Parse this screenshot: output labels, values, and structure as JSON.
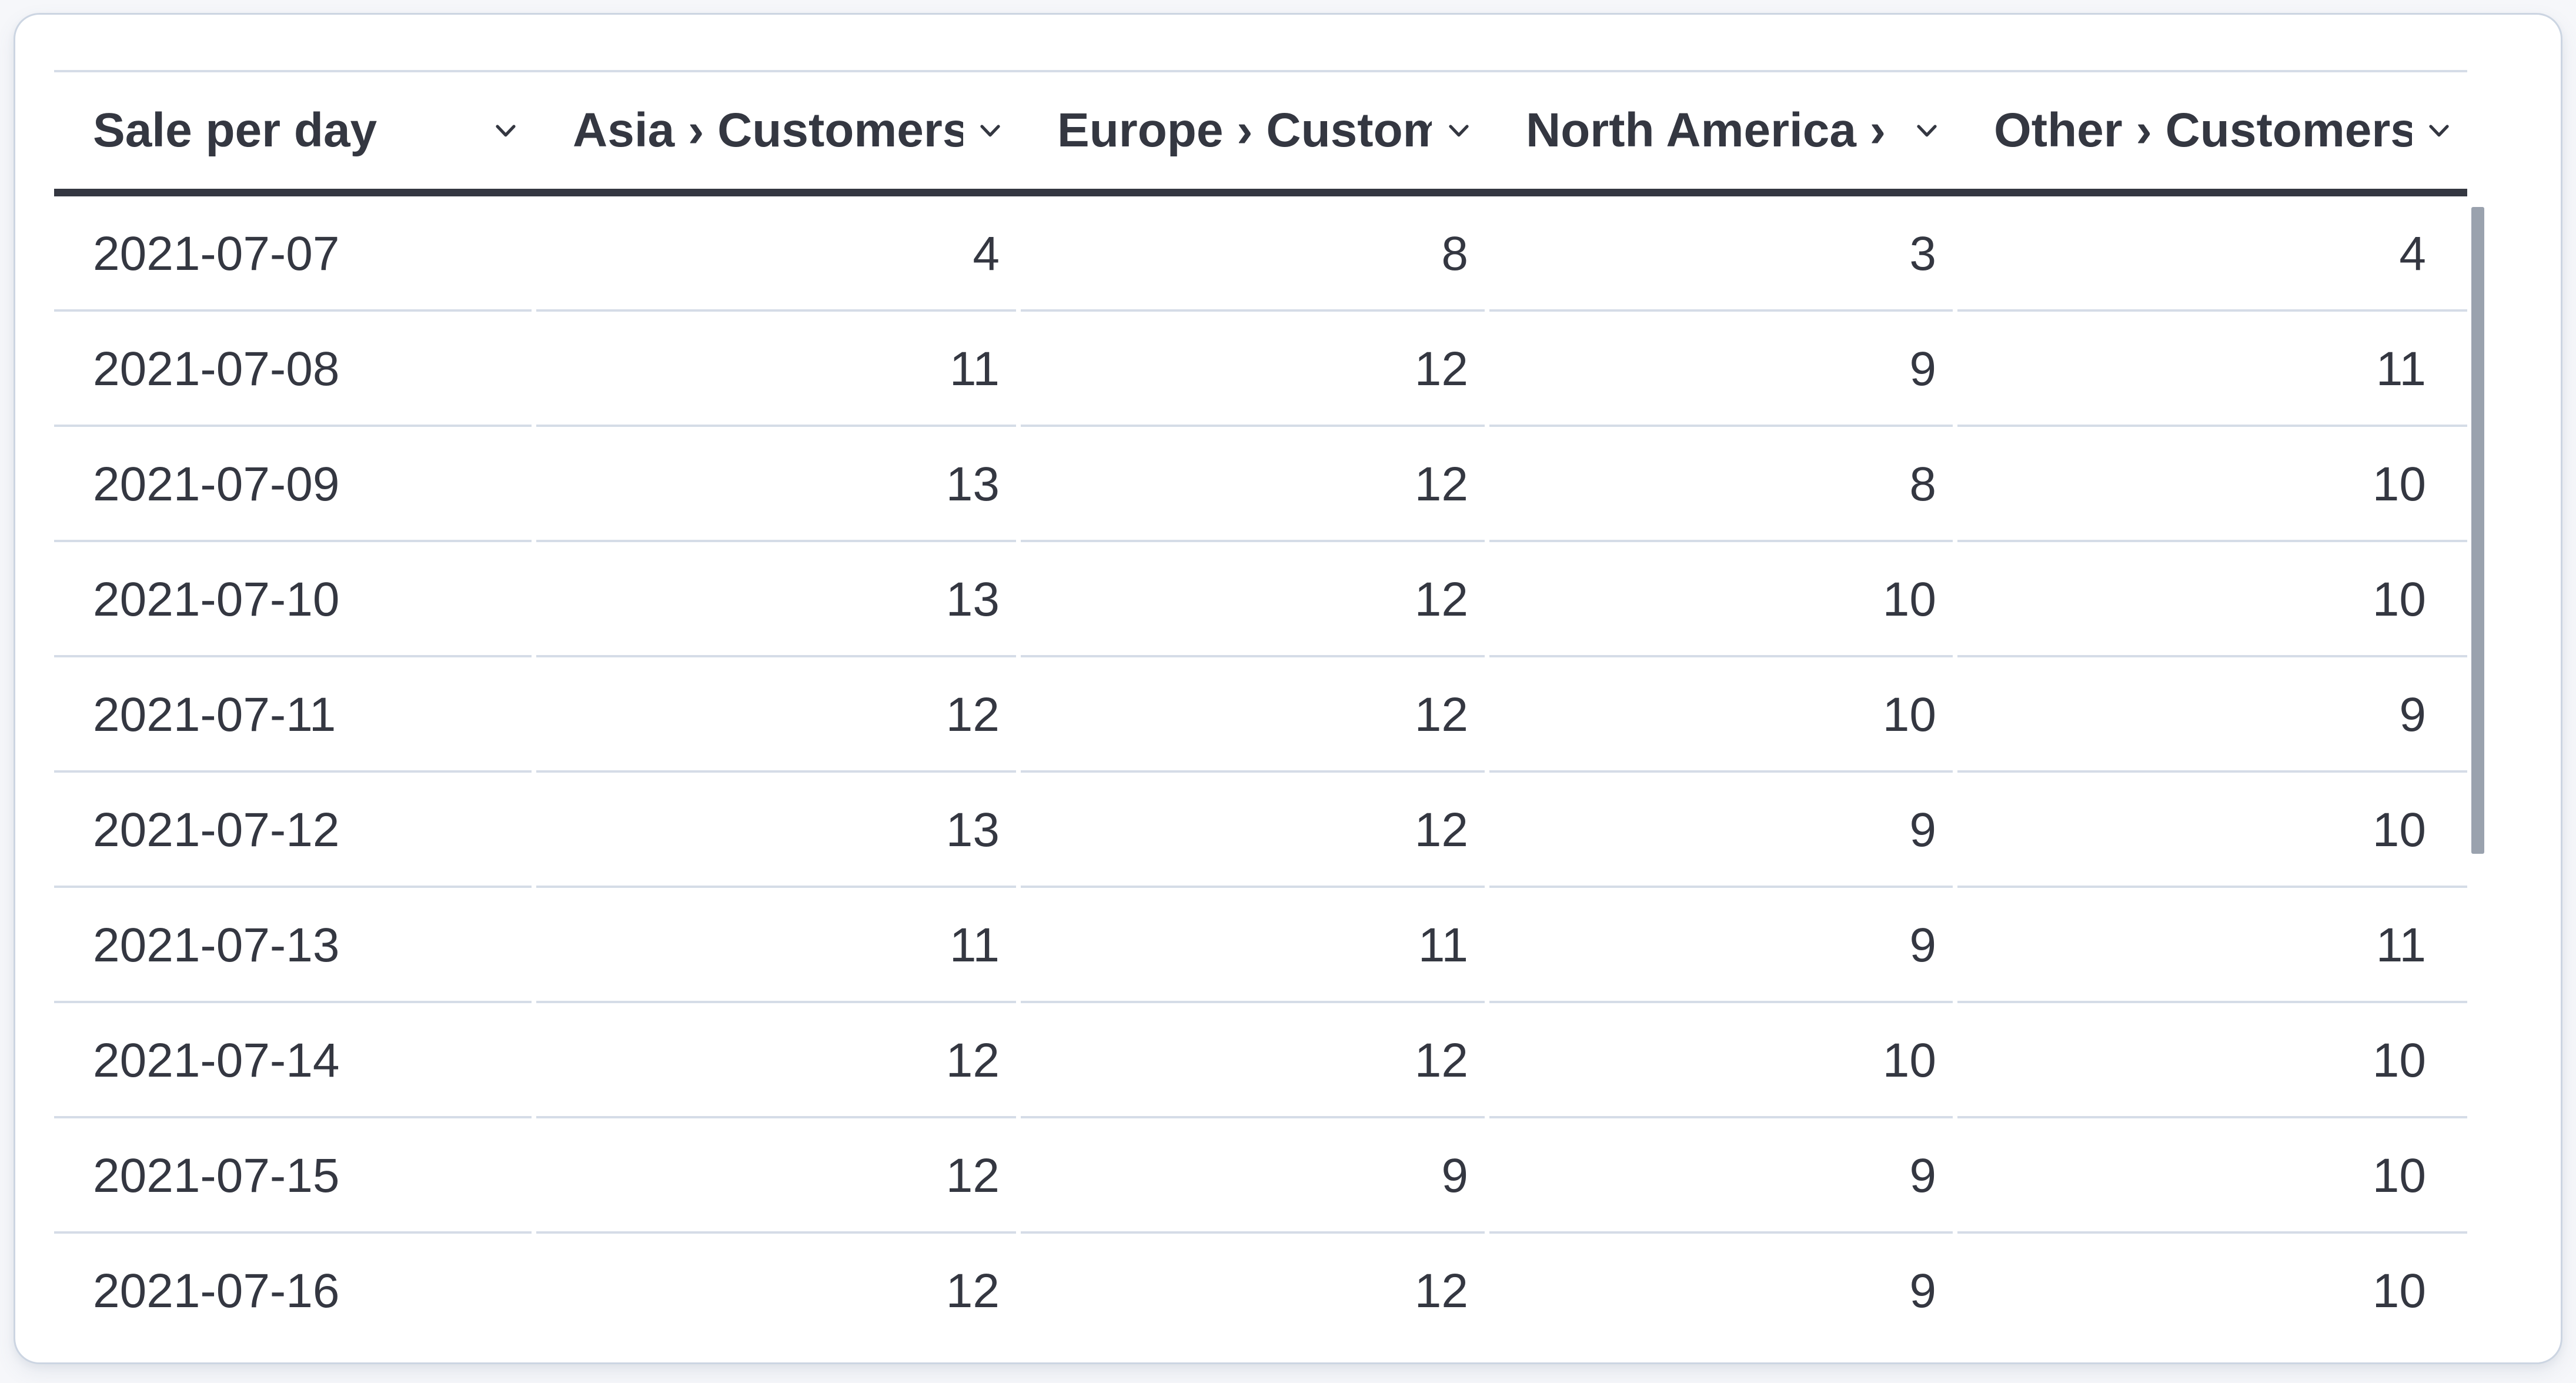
{
  "panel": {
    "type": "data-grid"
  },
  "table": {
    "columns": [
      {
        "label": "Sale per day"
      },
      {
        "label": "Asia › Customers"
      },
      {
        "label": "Europe › Customers"
      },
      {
        "label": "North America › Customers"
      },
      {
        "label": "Other › Customers"
      }
    ],
    "rows": [
      {
        "date": "2021-07-07",
        "values": [
          4,
          8,
          3,
          4
        ]
      },
      {
        "date": "2021-07-08",
        "values": [
          11,
          12,
          9,
          11
        ]
      },
      {
        "date": "2021-07-09",
        "values": [
          13,
          12,
          8,
          10
        ]
      },
      {
        "date": "2021-07-10",
        "values": [
          13,
          12,
          10,
          10
        ]
      },
      {
        "date": "2021-07-11",
        "values": [
          12,
          12,
          10,
          9
        ]
      },
      {
        "date": "2021-07-12",
        "values": [
          13,
          12,
          9,
          10
        ]
      },
      {
        "date": "2021-07-13",
        "values": [
          11,
          11,
          9,
          11
        ]
      },
      {
        "date": "2021-07-14",
        "values": [
          12,
          12,
          10,
          10
        ]
      },
      {
        "date": "2021-07-15",
        "values": [
          12,
          9,
          9,
          10
        ]
      },
      {
        "date": "2021-07-16",
        "values": [
          12,
          12,
          9,
          10
        ]
      }
    ]
  },
  "icons": {
    "column_menu": "chevron-down-icon"
  },
  "scrollbar": {
    "orientation": "vertical"
  },
  "colors": {
    "text": "#343741",
    "divider": "#d5dce7",
    "header_underline": "#343741",
    "panel_border": "#ccd5e2",
    "page_bg": "#f6f7fa",
    "scrollbar": "#9aa2ae"
  }
}
